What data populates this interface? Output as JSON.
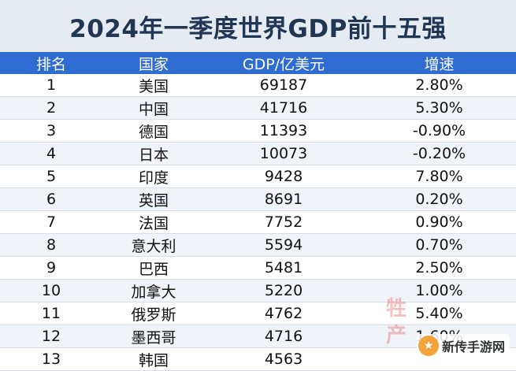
{
  "title": "2024年一季度世界GDP前十五强",
  "headers": {
    "rank": "排名",
    "country": "国家",
    "gdp": "GDP/亿美元",
    "growth": "增速"
  },
  "rows": [
    {
      "rank": "1",
      "country": "美国",
      "gdp": "69187",
      "growth": "2.80%"
    },
    {
      "rank": "2",
      "country": "中国",
      "gdp": "41716",
      "growth": "5.30%"
    },
    {
      "rank": "3",
      "country": "德国",
      "gdp": "11393",
      "growth": "-0.90%"
    },
    {
      "rank": "4",
      "country": "日本",
      "gdp": "10073",
      "growth": "-0.20%"
    },
    {
      "rank": "5",
      "country": "印度",
      "gdp": "9428",
      "growth": "7.80%"
    },
    {
      "rank": "6",
      "country": "英国",
      "gdp": "8691",
      "growth": "0.20%"
    },
    {
      "rank": "7",
      "country": "法国",
      "gdp": "7752",
      "growth": "0.90%"
    },
    {
      "rank": "8",
      "country": "意大利",
      "gdp": "5594",
      "growth": "0.70%"
    },
    {
      "rank": "9",
      "country": "巴西",
      "gdp": "5481",
      "growth": "2.50%"
    },
    {
      "rank": "10",
      "country": "加拿大",
      "gdp": "5220",
      "growth": "1.00%"
    },
    {
      "rank": "11",
      "country": "俄罗斯",
      "gdp": "4762",
      "growth": "5.40%"
    },
    {
      "rank": "12",
      "country": "墨西哥",
      "gdp": "4716",
      "growth": "1.60%"
    },
    {
      "rank": "13",
      "country": "韩国",
      "gdp": "4563",
      "growth": ""
    }
  ],
  "watermark": {
    "text": "新传手游网",
    "side_mark": "牲产"
  }
}
